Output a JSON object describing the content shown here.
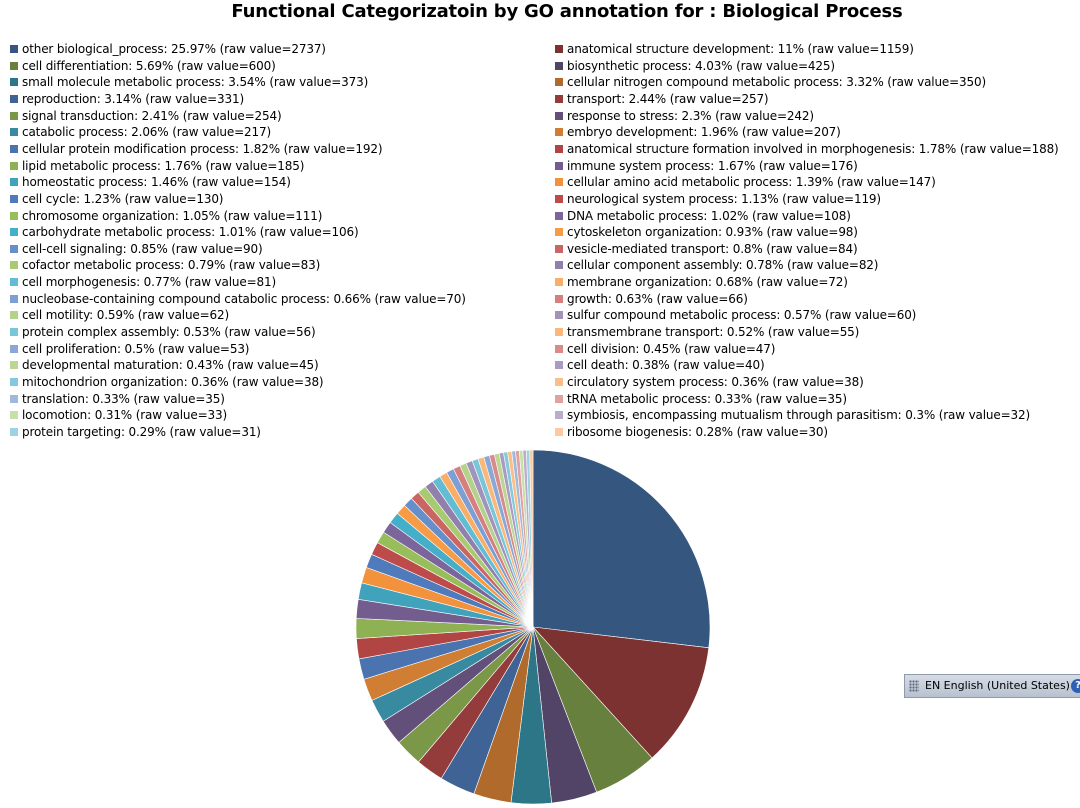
{
  "chart_data": {
    "type": "pie",
    "title": "Functional Categorizatoin by GO annotation  for : Biological Process",
    "legend_position": "top",
    "slices": [
      {
        "label": "other biological_process",
        "percent": "25.97%",
        "raw": 2737,
        "color": "#34567f"
      },
      {
        "label": "anatomical structure development",
        "percent": "11%",
        "raw": 1159,
        "color": "#7d3232"
      },
      {
        "label": "cell differentiation",
        "percent": "5.69%",
        "raw": 600,
        "color": "#67803d"
      },
      {
        "label": "biosynthetic process",
        "percent": "4.03%",
        "raw": 425,
        "color": "#524466"
      },
      {
        "label": "small molecule metabolic process",
        "percent": "3.54%",
        "raw": 373,
        "color": "#2d7688"
      },
      {
        "label": "cellular nitrogen compound metabolic process",
        "percent": "3.32%",
        "raw": 350,
        "color": "#b06b2c"
      },
      {
        "label": "reproduction",
        "percent": "3.14%",
        "raw": 331,
        "color": "#3f6395"
      },
      {
        "label": "transport",
        "percent": "2.44%",
        "raw": 257,
        "color": "#943c3b"
      },
      {
        "label": "signal transduction",
        "percent": "2.41%",
        "raw": 254,
        "color": "#7a9848"
      },
      {
        "label": "response to stress",
        "percent": "2.3%",
        "raw": 242,
        "color": "#624f7a"
      },
      {
        "label": "catabolic process",
        "percent": "2.06%",
        "raw": 217,
        "color": "#378aa0"
      },
      {
        "label": "embryo development",
        "percent": "1.96%",
        "raw": 207,
        "color": "#d07e34"
      },
      {
        "label": "cellular protein modification process",
        "percent": "1.82%",
        "raw": 192,
        "color": "#4a73b0"
      },
      {
        "label": "anatomical structure formation involved in morphogenesis",
        "percent": "1.78%",
        "raw": 188,
        "color": "#b04544"
      },
      {
        "label": "lipid metabolic process",
        "percent": "1.76%",
        "raw": 185,
        "color": "#8db153"
      },
      {
        "label": "immune system process",
        "percent": "1.67%",
        "raw": 176,
        "color": "#735d8f"
      },
      {
        "label": "homeostatic process",
        "percent": "1.46%",
        "raw": 154,
        "color": "#40a2bb"
      },
      {
        "label": "cellular amino acid metabolic process",
        "percent": "1.39%",
        "raw": 147,
        "color": "#f3923c"
      },
      {
        "label": "cell cycle",
        "percent": "1.23%",
        "raw": 130,
        "color": "#4f7bbd"
      },
      {
        "label": "neurological system process",
        "percent": "1.13%",
        "raw": 119,
        "color": "#bd4b4a"
      },
      {
        "label": "chromosome organization",
        "percent": "1.05%",
        "raw": 111,
        "color": "#97be5a"
      },
      {
        "label": "DNA metabolic process",
        "percent": "1.02%",
        "raw": 108,
        "color": "#7c659a"
      },
      {
        "label": "carbohydrate metabolic process",
        "percent": "1.01%",
        "raw": 106,
        "color": "#45aec9"
      },
      {
        "label": "cytoskeleton organization",
        "percent": "0.93%",
        "raw": 98,
        "color": "#f79b47"
      },
      {
        "label": "cell-cell signaling",
        "percent": "0.85%",
        "raw": 90,
        "color": "#668ecb"
      },
      {
        "label": "vesicle-mediated transport",
        "percent": "0.8%",
        "raw": 84,
        "color": "#cb6564"
      },
      {
        "label": "cofactor metabolic process",
        "percent": "0.79%",
        "raw": 83,
        "color": "#a8cb72"
      },
      {
        "label": "cellular component assembly",
        "percent": "0.78%",
        "raw": 82,
        "color": "#917fac"
      },
      {
        "label": "cell morphogenesis",
        "percent": "0.77%",
        "raw": 81,
        "color": "#62bcd4"
      },
      {
        "label": "membrane organization",
        "percent": "0.68%",
        "raw": 72,
        "color": "#f9ad67"
      },
      {
        "label": "nucleobase-containing compound catabolic process",
        "percent": "0.66%",
        "raw": 70,
        "color": "#7e9fd3"
      },
      {
        "label": "growth",
        "percent": "0.63%",
        "raw": 66,
        "color": "#d57f7e"
      },
      {
        "label": "cell motility",
        "percent": "0.59%",
        "raw": 62,
        "color": "#b5d28a"
      },
      {
        "label": "sulfur compound metabolic process",
        "percent": "0.57%",
        "raw": 60,
        "color": "#a293bb"
      },
      {
        "label": "protein complex assembly",
        "percent": "0.53%",
        "raw": 56,
        "color": "#79c6db"
      },
      {
        "label": "transmembrane transport",
        "percent": "0.52%",
        "raw": 55,
        "color": "#fab87d"
      },
      {
        "label": "cell proliferation",
        "percent": "0.5%",
        "raw": 53,
        "color": "#8aa8d6"
      },
      {
        "label": "cell division",
        "percent": "0.45%",
        "raw": 47,
        "color": "#d88b8a"
      },
      {
        "label": "developmental maturation",
        "percent": "0.43%",
        "raw": 45,
        "color": "#bcd693"
      },
      {
        "label": "cell death",
        "percent": "0.38%",
        "raw": 40,
        "color": "#a99bc1"
      },
      {
        "label": "mitochondrion organization",
        "percent": "0.36%",
        "raw": 38,
        "color": "#83cadd"
      },
      {
        "label": "circulatory system process",
        "percent": "0.36%",
        "raw": 38,
        "color": "#fbbe87"
      },
      {
        "label": "translation",
        "percent": "0.33%",
        "raw": 35,
        "color": "#a1b8dd"
      },
      {
        "label": "tRNA metabolic process",
        "percent": "0.33%",
        "raw": 35,
        "color": "#dfa2a1"
      },
      {
        "label": "locomotion",
        "percent": "0.31%",
        "raw": 33,
        "color": "#c9dea9"
      },
      {
        "label": "symbiosis, encompassing mutualism through parasitism",
        "percent": "0.3%",
        "raw": 32,
        "color": "#b8adcd"
      },
      {
        "label": "protein targeting",
        "percent": "0.29%",
        "raw": 31,
        "color": "#9dd4e4"
      },
      {
        "label": "ribosome biogenesis",
        "percent": "0.28%",
        "raw": 30,
        "color": "#fcc9a0"
      }
    ]
  },
  "language_bar": {
    "label": "EN English (United States)",
    "grip_icon": "grip-icon",
    "help_icon": "help-icon",
    "help_glyph": "?"
  }
}
